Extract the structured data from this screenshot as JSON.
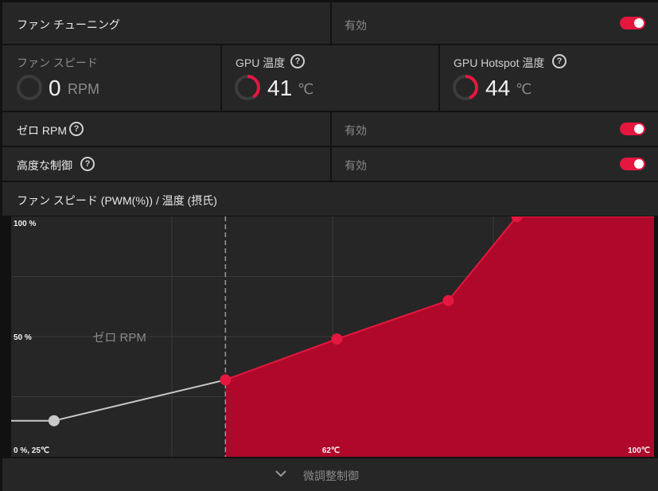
{
  "fan_tuning": {
    "label": "ファン チューニング",
    "status": "有効",
    "enabled": true
  },
  "metrics": [
    {
      "label": "ファン スピード",
      "value": "0",
      "unit": "RPM",
      "level": 0
    },
    {
      "label": "GPU 温度",
      "value": "41",
      "unit": "℃",
      "level": 0.41
    },
    {
      "label": "GPU Hotspot 温度",
      "value": "44",
      "unit": "℃",
      "level": 0.44
    }
  ],
  "help_glyph": "?",
  "zero_rpm": {
    "label": "ゼロ RPM",
    "status": "有効",
    "enabled": true
  },
  "advanced_control": {
    "label": "高度な制御",
    "status": "有効",
    "enabled": true
  },
  "chart_header": "ファン スピード (PWM(%)) / 温度 (摂氏)",
  "chart_data": {
    "type": "area",
    "xlim": [
      25,
      100
    ],
    "ylim": [
      0,
      100
    ],
    "points": [
      {
        "x": 30,
        "y": 15
      },
      {
        "x": 50,
        "y": 32
      },
      {
        "x": 63,
        "y": 49
      },
      {
        "x": 76,
        "y": 65
      },
      {
        "x": 84,
        "y": 100
      }
    ],
    "zero_rpm_threshold": 50,
    "zero_rpm_label": "ゼロ RPM",
    "tick_labels": {
      "y_top": "100 %",
      "y_mid": "50 %",
      "origin": "0 %, 25℃",
      "x_mid": "62℃",
      "x_max": "100℃"
    },
    "colors": {
      "active_fill": "#b0082a",
      "active_line": "#e5173f",
      "inactive": "#c8c8c8"
    }
  },
  "fine_tune": {
    "label": "微調整制御",
    "icon": "chevron-down-icon"
  }
}
